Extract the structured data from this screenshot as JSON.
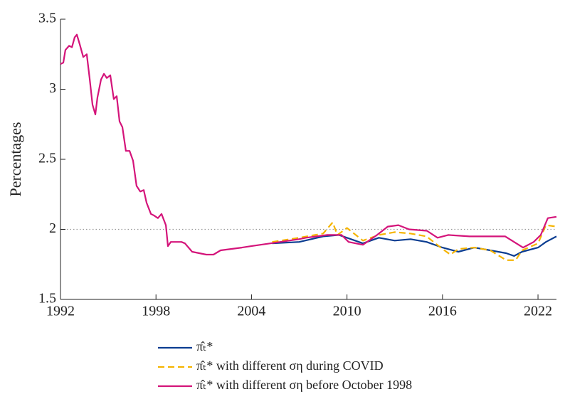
{
  "chart_data": {
    "type": "line",
    "ylabel": "Percentages",
    "xlim": [
      1992,
      2023.16
    ],
    "xticks": [
      1992,
      1998,
      2004,
      2010,
      2016,
      2022
    ],
    "ylim": [
      1.5,
      3.5
    ],
    "yticks": [
      1.5,
      2,
      2.5,
      3,
      3.5
    ],
    "hline": 2,
    "legend": "bottom",
    "series": [
      {
        "name": "π̂ₜ*",
        "color": "#0b3d91",
        "dashed": false,
        "x": [
          2005.3,
          2007,
          2008.5,
          2009.5,
          2010,
          2011,
          2012,
          2013,
          2014,
          2015,
          2016,
          2017,
          2018,
          2019,
          2020,
          2020.5,
          2021,
          2022,
          2022.5,
          2023.16
        ],
        "values": [
          1.9,
          1.91,
          1.95,
          1.96,
          1.94,
          1.9,
          1.94,
          1.92,
          1.93,
          1.91,
          1.87,
          1.84,
          1.87,
          1.85,
          1.83,
          1.81,
          1.84,
          1.87,
          1.91,
          1.95
        ]
      },
      {
        "name": "π̂ₜ* with different ση during COVID",
        "color": "#f5b400",
        "dashed": true,
        "x": [
          2005.3,
          2007,
          2008.5,
          2009.1,
          2009.4,
          2010,
          2011,
          2012,
          2013,
          2014,
          2015,
          2016,
          2016.5,
          2017,
          2018,
          2019,
          2020,
          2020.6,
          2021,
          2022,
          2022.5,
          2023.16
        ],
        "values": [
          1.91,
          1.94,
          1.97,
          2.05,
          1.96,
          2.01,
          1.92,
          1.96,
          1.98,
          1.97,
          1.95,
          1.86,
          1.82,
          1.86,
          1.87,
          1.85,
          1.78,
          1.78,
          1.85,
          1.9,
          2.03,
          2.02
        ]
      },
      {
        "name": "π̂ₜ* with different ση before October 1998",
        "color": "#d4147a",
        "dashed": false,
        "x": [
          1992.0,
          1992.18,
          1992.31,
          1992.54,
          1992.72,
          1992.89,
          1993.03,
          1993.21,
          1993.43,
          1993.65,
          1993.83,
          1994.01,
          1994.19,
          1994.32,
          1994.55,
          1994.73,
          1994.91,
          1995.13,
          1995.35,
          1995.53,
          1995.71,
          1995.89,
          1996.11,
          1996.34,
          1996.56,
          1996.78,
          1997.01,
          1997.23,
          1997.41,
          1997.68,
          1997.86,
          1998.12,
          1998.35,
          1998.62,
          1998.75,
          1998.93,
          1999.6,
          1999.82,
          2000.27,
          2001.16,
          2001.61,
          2002.06,
          2003.4,
          2003.98,
          2005.19,
          2006.98,
          2007.42,
          2008.76,
          2009.66,
          2010.1,
          2011.0,
          2011.89,
          2012.56,
          2013.23,
          2013.9,
          2015.02,
          2015.69,
          2016.36,
          2017.7,
          2018.6,
          2019.94,
          2021.06,
          2021.73,
          2022.17,
          2022.62,
          2023.16
        ],
        "values": [
          3.18,
          3.19,
          3.28,
          3.31,
          3.3,
          3.37,
          3.39,
          3.32,
          3.23,
          3.25,
          3.08,
          2.89,
          2.82,
          2.94,
          3.07,
          3.11,
          3.08,
          3.1,
          2.93,
          2.95,
          2.77,
          2.73,
          2.56,
          2.56,
          2.49,
          2.31,
          2.27,
          2.28,
          2.19,
          2.11,
          2.1,
          2.08,
          2.11,
          2.03,
          1.88,
          1.91,
          1.91,
          1.9,
          1.84,
          1.82,
          1.82,
          1.85,
          1.87,
          1.88,
          1.9,
          1.93,
          1.94,
          1.96,
          1.96,
          1.91,
          1.89,
          1.96,
          2.02,
          2.03,
          2.0,
          1.99,
          1.94,
          1.96,
          1.95,
          1.95,
          1.95,
          1.87,
          1.91,
          1.96,
          2.08,
          2.09
        ]
      }
    ]
  }
}
